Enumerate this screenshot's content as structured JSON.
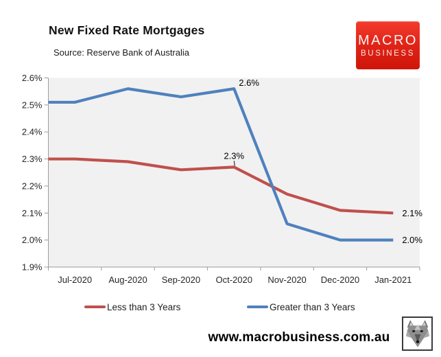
{
  "header": {
    "title": "New Fixed Rate Mortgages",
    "source": "Source: Reserve Bank of Australia"
  },
  "logo": {
    "line1": "MACRO",
    "line2": "BUSINESS",
    "bg_color": "#E02417"
  },
  "footer": {
    "website": "www.macrobusiness.com.au",
    "emblem": "wolf-head"
  },
  "chart_data": {
    "type": "line",
    "title": "New Fixed Rate Mortgages",
    "subtitle": "Source: Reserve Bank of Australia",
    "categories": [
      "Jul-2020",
      "Aug-2020",
      "Sep-2020",
      "Oct-2020",
      "Nov-2020",
      "Dec-2020",
      "Jan-2021"
    ],
    "series": [
      {
        "name": "Less than 3 Years",
        "color": "#C0504D",
        "values": [
          2.3,
          2.29,
          2.26,
          2.27,
          2.17,
          2.11,
          2.1
        ]
      },
      {
        "name": "Greater than 3 Years",
        "color": "#4F81BD",
        "values": [
          2.51,
          2.56,
          2.53,
          2.56,
          2.06,
          2.0,
          2.0
        ]
      }
    ],
    "ylim": [
      1.9,
      2.6
    ],
    "y_ticks": [
      {
        "label": "2.6%",
        "value": 2.6
      },
      {
        "label": "2.5%",
        "value": 2.5
      },
      {
        "label": "2.4%",
        "value": 2.4
      },
      {
        "label": "2.3%",
        "value": 2.3
      },
      {
        "label": "2.2%",
        "value": 2.2
      },
      {
        "label": "2.1%",
        "value": 2.1
      },
      {
        "label": "2.0%",
        "value": 2.0
      },
      {
        "label": "1.9%",
        "value": 1.9
      }
    ],
    "grid": false,
    "plot_bg": "#F1F1F1",
    "axis_color": "#9B9B9B",
    "legend_position": "bottom",
    "annotations": [
      {
        "text": "2.6%",
        "series": "Greater than 3 Years",
        "category": "Oct-2020",
        "placement": "above-right",
        "leader": false
      },
      {
        "text": "2.3%",
        "series": "Less than 3 Years",
        "category": "Oct-2020",
        "placement": "above",
        "leader": true
      },
      {
        "text": "2.1%",
        "series": "Less than 3 Years",
        "category": "Jan-2021",
        "placement": "right",
        "leader": false
      },
      {
        "text": "2.0%",
        "series": "Greater than 3 Years",
        "category": "Jan-2021",
        "placement": "right",
        "leader": false
      }
    ]
  }
}
